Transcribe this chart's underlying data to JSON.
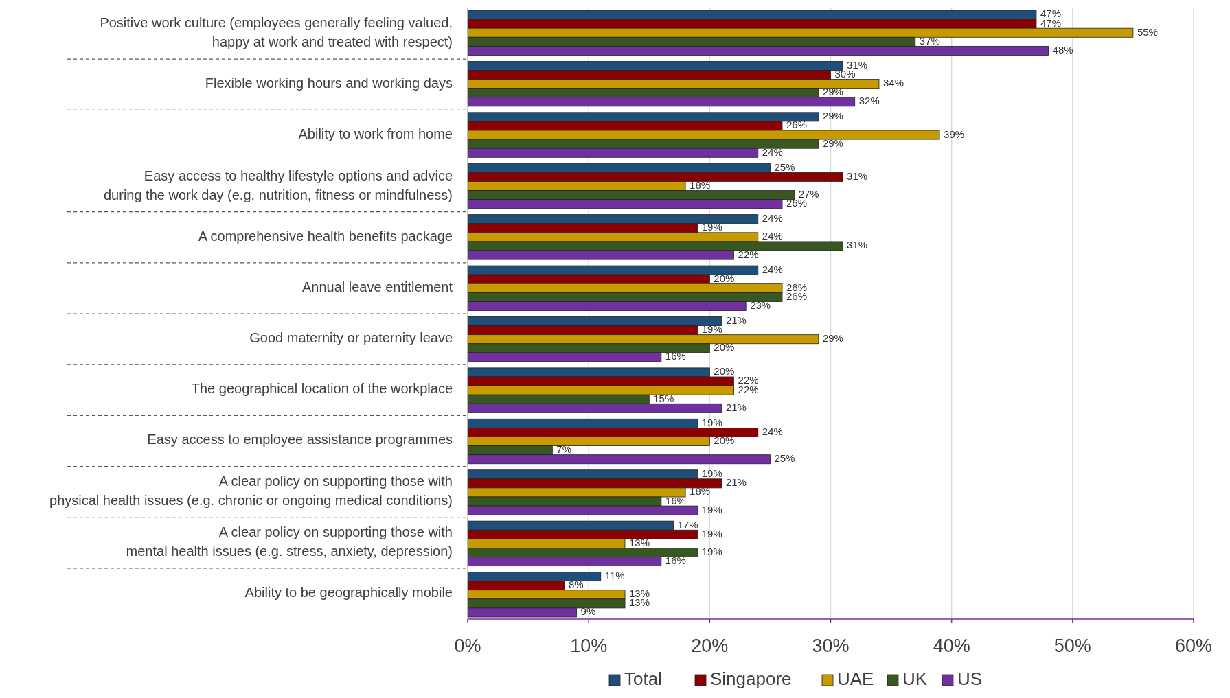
{
  "chart_data": {
    "type": "bar",
    "orientation": "horizontal",
    "categories": [
      "Positive work culture (employees generally feeling valued,\nhappy at work and treated with respect)",
      "Flexible working hours and working days",
      "Ability to work from home",
      "Easy access to healthy lifestyle options and advice\nduring the work day (e.g. nutrition, fitness or mindfulness)",
      "A comprehensive health benefits package",
      "Annual leave entitlement",
      "Good maternity or paternity leave",
      "The geographical location of the workplace",
      "Easy access to employee assistance programmes",
      "A clear policy on supporting those with\nphysical health issues (e.g. chronic or ongoing medical conditions)",
      "A clear policy on supporting those with\nmental health issues (e.g. stress, anxiety, depression)",
      "Ability to be geographically mobile"
    ],
    "series": [
      {
        "name": "Total",
        "color": "#1f4e79",
        "values": [
          47,
          31,
          29,
          25,
          24,
          24,
          21,
          20,
          19,
          19,
          17,
          11
        ],
        "value_labels": [
          "47%",
          "31%",
          "29%",
          "25%",
          "24%",
          "24%",
          "21%",
          "20%",
          "19%",
          "19%",
          "17%",
          "11%"
        ]
      },
      {
        "name": "Singapore",
        "color": "#8b0000",
        "values": [
          47,
          30,
          26,
          31,
          19,
          20,
          19,
          22,
          24,
          21,
          19,
          8
        ],
        "value_labels": [
          "47%",
          "30%",
          "26%",
          "31%",
          "19%",
          "20%",
          "19%",
          "22%",
          "24%",
          "21%",
          "19%",
          "8%"
        ]
      },
      {
        "name": "UAE",
        "color": "#c79a00",
        "values": [
          55,
          34,
          39,
          18,
          24,
          26,
          29,
          22,
          20,
          18,
          13,
          13
        ],
        "value_labels": [
          "55%",
          "34%",
          "39%",
          "18%",
          "24%",
          "26%",
          "29%",
          "22%",
          "20%",
          "18%",
          "13%",
          "13%"
        ]
      },
      {
        "name": "UK",
        "color": "#385723",
        "values": [
          37,
          29,
          29,
          27,
          31,
          26,
          20,
          15,
          7,
          16,
          19,
          13
        ],
        "value_labels": [
          "37%",
          "29%",
          "29%",
          "27%",
          "31%",
          "26%",
          "20%",
          "15%",
          "7%",
          "16%",
          "19%",
          "13%"
        ]
      },
      {
        "name": "US",
        "color": "#7030a0",
        "values": [
          48,
          32,
          24,
          26,
          22,
          23,
          16,
          21,
          25,
          19,
          16,
          9
        ],
        "value_labels": [
          "48%",
          "32%",
          "24%",
          "26%",
          "22%",
          "23%",
          "16%",
          "21%",
          "25%",
          "19%",
          "16%",
          "9%"
        ]
      }
    ],
    "xlim": [
      0,
      60
    ],
    "xticks": [
      {
        "value": 0,
        "label": "0%"
      },
      {
        "value": 10,
        "label": "10%"
      },
      {
        "value": 20,
        "label": "20%"
      },
      {
        "value": 30,
        "label": "30%"
      },
      {
        "value": 40,
        "label": "40%"
      },
      {
        "value": 50,
        "label": "50%"
      },
      {
        "value": 60,
        "label": "60%"
      }
    ],
    "grid": "x",
    "legend": "bottom"
  }
}
